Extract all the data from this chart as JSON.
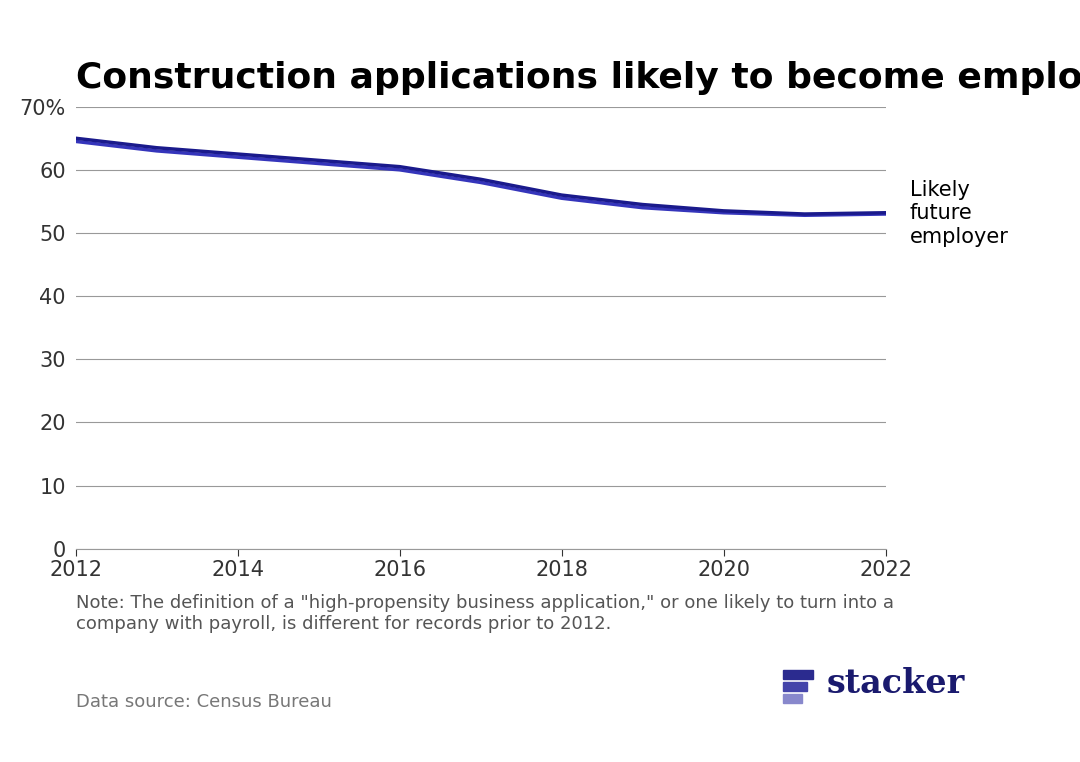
{
  "title": "Construction applications likely to become employers",
  "title_fontsize": 26,
  "title_fontweight": "bold",
  "background_color": "#ffffff",
  "line1_label": "Likely\nfuture\nemployer",
  "line1_color": "#1a1a8c",
  "line1_x": [
    2012,
    2013,
    2014,
    2015,
    2016,
    2017,
    2018,
    2019,
    2020,
    2021,
    2022
  ],
  "line1_y": [
    65.0,
    63.5,
    62.5,
    61.5,
    60.5,
    58.5,
    56.0,
    54.5,
    53.5,
    53.0,
    53.2
  ],
  "line2_color": "#3535bb",
  "line2_x": [
    2012,
    2013,
    2014,
    2015,
    2016,
    2017,
    2018,
    2019,
    2020,
    2021,
    2022
  ],
  "line2_y": [
    64.5,
    63.0,
    62.0,
    61.0,
    60.0,
    58.0,
    55.5,
    54.0,
    53.2,
    52.8,
    53.0
  ],
  "xlim": [
    2012,
    2022
  ],
  "ylim": [
    0,
    70
  ],
  "yticks": [
    0,
    10,
    20,
    30,
    40,
    50,
    60,
    70
  ],
  "ytick_labels": [
    "0",
    "10",
    "20",
    "30",
    "40",
    "50",
    "60",
    "70%"
  ],
  "xticks": [
    2012,
    2014,
    2016,
    2018,
    2020,
    2022
  ],
  "grid_color": "#999999",
  "tick_color": "#333333",
  "note_text": "Note: The definition of a \"high-propensity business application,\" or one likely to turn into a\ncompany with payroll, is different for records prior to 2012.",
  "source_text": "Data source: Census Bureau",
  "stacker_text": "stacker",
  "note_fontsize": 13,
  "source_fontsize": 13,
  "line_width": 2.5,
  "stacker_dark": "#1a1a6e",
  "stacker_bar1": "#2b2b8f",
  "stacker_bar2": "#4444aa",
  "stacker_bar3": "#8888cc"
}
